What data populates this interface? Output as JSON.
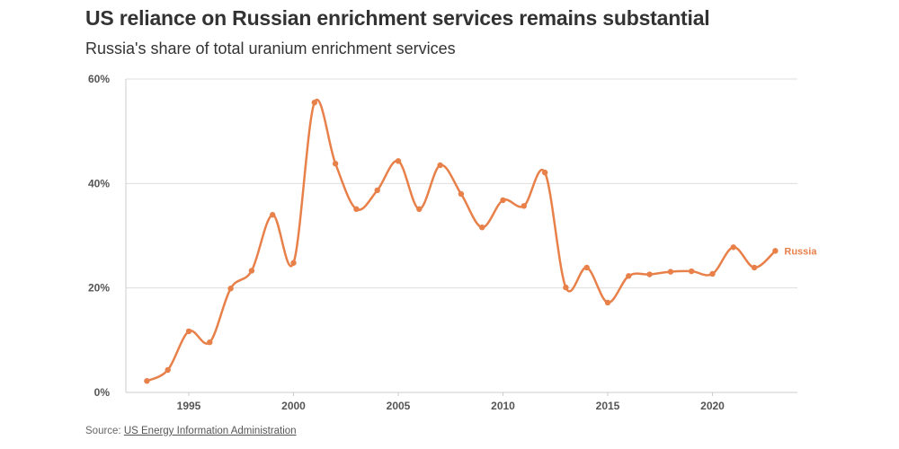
{
  "header": {
    "title": "US reliance on Russian enrichment services remains substantial",
    "subtitle": "Russia's share of total uranium enrichment services"
  },
  "footer": {
    "source_prefix": "Source: ",
    "source_link": "US Energy Information Administration"
  },
  "colors": {
    "series": "#E8804A",
    "grid": "#dddddd",
    "axis": "#cccccc"
  },
  "chart_data": {
    "type": "line",
    "title": "US reliance on Russian enrichment services remains substantial",
    "subtitle": "Russia's share of total uranium enrichment services",
    "xlabel": "",
    "ylabel": "",
    "xlim": [
      1992,
      2024
    ],
    "ylim": [
      0,
      60
    ],
    "x_ticks": [
      1995,
      2000,
      2005,
      2010,
      2015,
      2020
    ],
    "x_tick_labels": [
      "1995",
      "2000",
      "2005",
      "2010",
      "2015",
      "2020"
    ],
    "y_ticks": [
      0,
      20,
      40,
      60
    ],
    "y_tick_labels": [
      "0%",
      "20%",
      "40%",
      "60%"
    ],
    "grid": "horizontal",
    "legend": "inline label at end of series (right)",
    "x": [
      1993,
      1994,
      1995,
      1996,
      1997,
      1998,
      1999,
      2000,
      2001,
      2002,
      2003,
      2004,
      2005,
      2006,
      2007,
      2008,
      2009,
      2010,
      2011,
      2012,
      2013,
      2014,
      2015,
      2016,
      2017,
      2018,
      2019,
      2020,
      2021,
      2022,
      2023
    ],
    "series": [
      {
        "name": "Russia",
        "values": [
          2.2,
          4.3,
          11.7,
          9.6,
          19.9,
          23.3,
          34.0,
          24.8,
          55.5,
          43.8,
          35.1,
          38.7,
          44.3,
          35.1,
          43.5,
          38.0,
          31.6,
          36.8,
          35.7,
          42.1,
          20.1,
          23.9,
          17.2,
          22.3,
          22.6,
          23.1,
          23.2,
          22.7,
          27.8,
          23.9,
          27.1
        ]
      }
    ]
  }
}
